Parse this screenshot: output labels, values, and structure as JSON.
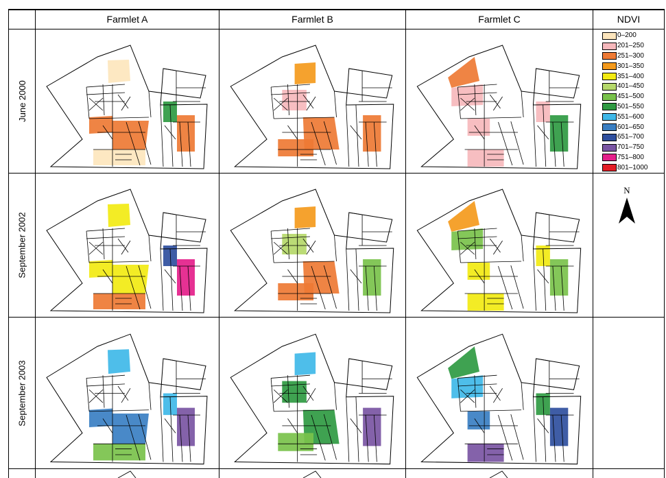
{
  "table": {
    "columns": [
      "Farmlet A",
      "Farmlet B",
      "Farmlet C",
      "NDVI"
    ],
    "rows": [
      "June 2000",
      "September 2002",
      "September 2003"
    ]
  },
  "legend": {
    "items": [
      {
        "label": "0–200",
        "color": "#fde6bd"
      },
      {
        "label": "201–250",
        "color": "#f6b8bc"
      },
      {
        "label": "251–300",
        "color": "#ee7a34"
      },
      {
        "label": "301–350",
        "color": "#f49a1c"
      },
      {
        "label": "351–400",
        "color": "#f2ea12"
      },
      {
        "label": "401–450",
        "color": "#b5d86a"
      },
      {
        "label": "451–500",
        "color": "#79c24b"
      },
      {
        "label": "501–550",
        "color": "#2f9a42"
      },
      {
        "label": "551–600",
        "color": "#3fb8e8"
      },
      {
        "label": "601–650",
        "color": "#3a7fc3"
      },
      {
        "label": "651–700",
        "color": "#2f4f9e"
      },
      {
        "label": "701–750",
        "color": "#7a55a3"
      },
      {
        "label": "751–800",
        "color": "#e4208a"
      },
      {
        "label": "801–1000",
        "color": "#e31e26"
      }
    ]
  },
  "north_arrow": {
    "letter": "N",
    "icon": "north-arrow-icon"
  },
  "maps": [
    [
      {
        "fills": [
          [
            "a-top",
            0
          ],
          [
            "a-mid",
            2
          ],
          [
            "a-low",
            2
          ],
          [
            "a-bot",
            0
          ],
          [
            "right-a",
            7
          ],
          [
            "right-b",
            2
          ]
        ]
      },
      {
        "fills": [
          [
            "b-top",
            3
          ],
          [
            "b-mid",
            1
          ],
          [
            "b-low",
            2
          ],
          [
            "b-bot",
            2
          ],
          [
            "right-b",
            2
          ]
        ]
      },
      {
        "fills": [
          [
            "c-top",
            2
          ],
          [
            "c-left",
            1
          ],
          [
            "c-mid",
            1
          ],
          [
            "right-a",
            1
          ],
          [
            "right-b",
            7
          ],
          [
            "c-bot",
            1
          ]
        ]
      }
    ],
    [
      {
        "fills": [
          [
            "a-top",
            4
          ],
          [
            "a-mid",
            4
          ],
          [
            "a-low",
            4
          ],
          [
            "a-bot",
            2
          ],
          [
            "right-a",
            10
          ],
          [
            "right-b",
            12
          ]
        ]
      },
      {
        "fills": [
          [
            "b-top",
            3
          ],
          [
            "b-mid",
            5
          ],
          [
            "b-low",
            2
          ],
          [
            "b-bot",
            2
          ],
          [
            "right-b",
            6
          ]
        ]
      },
      {
        "fills": [
          [
            "c-top",
            3
          ],
          [
            "c-left",
            6
          ],
          [
            "c-mid",
            4
          ],
          [
            "right-a",
            4
          ],
          [
            "right-b",
            6
          ],
          [
            "c-bot",
            4
          ]
        ]
      }
    ],
    [
      {
        "fills": [
          [
            "a-top",
            8
          ],
          [
            "a-mid",
            9
          ],
          [
            "a-low",
            9
          ],
          [
            "a-bot",
            6
          ],
          [
            "right-a",
            8
          ],
          [
            "right-b",
            11
          ]
        ]
      },
      {
        "fills": [
          [
            "b-top",
            8
          ],
          [
            "b-mid",
            7
          ],
          [
            "b-low",
            7
          ],
          [
            "b-bot",
            6
          ],
          [
            "right-b",
            11
          ]
        ]
      },
      {
        "fills": [
          [
            "c-top",
            7
          ],
          [
            "c-left",
            8
          ],
          [
            "c-mid",
            9
          ],
          [
            "right-a",
            7
          ],
          [
            "right-b",
            10
          ],
          [
            "c-bot",
            11
          ]
        ]
      }
    ]
  ]
}
